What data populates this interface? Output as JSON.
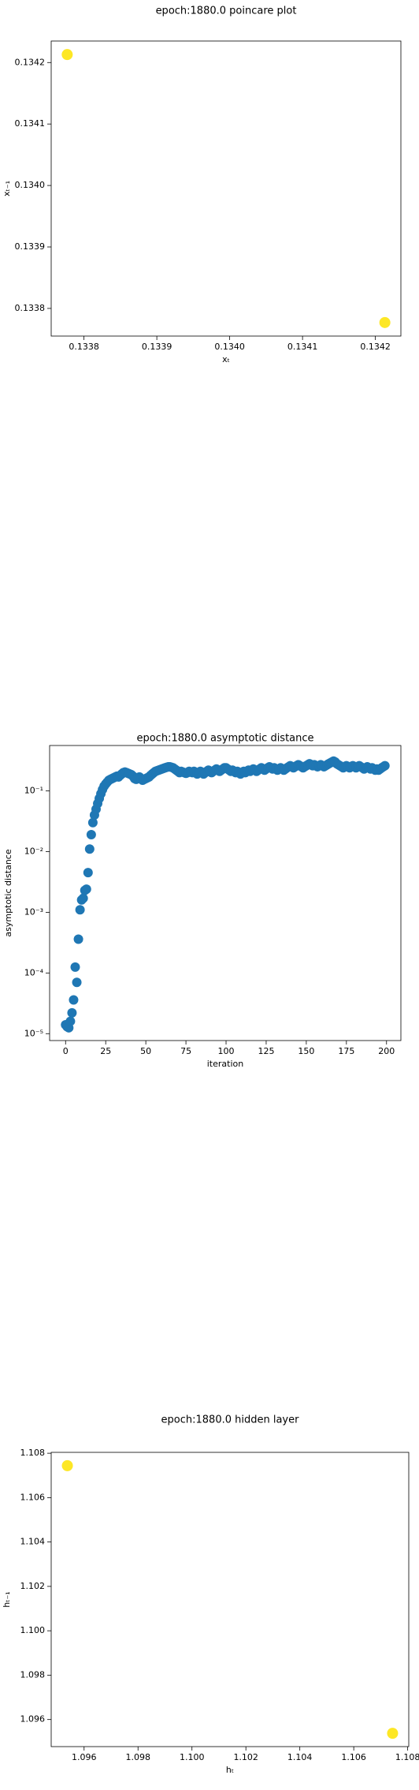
{
  "chart_data": [
    {
      "type": "scatter",
      "title": "epoch:1880.0 poincare plot",
      "x_label": "xₜ",
      "y_label": "xₜ₋₁",
      "x": [
        0.133777,
        0.134213
      ],
      "values": [
        0.134213,
        0.133777
      ],
      "color": "#fde725",
      "xlim": [
        0.133755,
        0.134235
      ],
      "ylim": [
        0.133755,
        0.134235
      ],
      "xticks": [
        0.1338,
        0.1339,
        {
          "value": 0.134,
          "label": "0.1340"
        },
        0.1341,
        0.1342
      ],
      "yticks": [
        0.1338,
        0.1339,
        {
          "value": 0.134,
          "label": "0.1340"
        },
        0.1341,
        0.1342
      ],
      "log_y": false
    },
    {
      "type": "scatter",
      "title": "epoch:1880.0 asymptotic distance",
      "x_label": "iteration",
      "y_label": "asymptotic distance",
      "x": [
        0,
        1,
        2,
        3,
        4,
        5,
        6,
        7,
        8,
        9,
        10,
        11,
        12,
        13,
        14,
        15,
        16,
        17,
        18,
        19,
        20,
        21,
        22,
        23,
        24,
        25,
        26,
        27,
        28,
        29,
        30,
        31,
        32,
        33,
        34,
        35,
        36,
        37,
        38,
        39,
        40,
        41,
        42,
        43,
        44,
        45,
        46,
        47,
        48,
        49,
        50,
        51,
        52,
        53,
        54,
        55,
        56,
        57,
        58,
        59,
        60,
        61,
        62,
        63,
        64,
        65,
        66,
        67,
        68,
        69,
        70,
        71,
        72,
        73,
        74,
        75,
        76,
        77,
        78,
        79,
        80,
        81,
        82,
        83,
        84,
        85,
        86,
        87,
        88,
        89,
        90,
        91,
        92,
        93,
        94,
        95,
        96,
        97,
        98,
        99,
        100,
        101,
        102,
        103,
        104,
        105,
        106,
        107,
        108,
        109,
        110,
        111,
        112,
        113,
        114,
        115,
        116,
        117,
        118,
        119,
        120,
        121,
        122,
        123,
        124,
        125,
        126,
        127,
        128,
        129,
        130,
        131,
        132,
        133,
        134,
        135,
        136,
        137,
        138,
        139,
        140,
        141,
        142,
        143,
        144,
        145,
        146,
        147,
        148,
        149,
        150,
        151,
        152,
        153,
        154,
        155,
        156,
        157,
        158,
        159,
        160,
        161,
        162,
        163,
        164,
        165,
        166,
        167,
        168,
        169,
        170,
        171,
        172,
        173,
        174,
        175,
        176,
        177,
        178,
        179,
        180,
        181,
        182,
        183,
        184,
        185,
        186,
        187,
        188,
        189,
        190,
        191,
        192,
        193,
        194,
        195,
        196,
        197,
        198,
        199
      ],
      "values": [
        1.4e-05,
        1.3e-05,
        1.25e-05,
        1.6e-05,
        2.2e-05,
        3.6e-05,
        0.000125,
        7e-05,
        0.00036,
        0.0011,
        0.0016,
        0.0017,
        0.0023,
        0.0024,
        0.0045,
        0.011,
        0.019,
        0.03,
        0.04,
        0.05,
        0.062,
        0.075,
        0.09,
        0.105,
        0.12,
        0.13,
        0.14,
        0.15,
        0.155,
        0.16,
        0.165,
        0.17,
        0.175,
        0.17,
        0.18,
        0.19,
        0.2,
        0.205,
        0.2,
        0.195,
        0.19,
        0.185,
        0.175,
        0.16,
        0.155,
        0.165,
        0.17,
        0.16,
        0.15,
        0.155,
        0.16,
        0.165,
        0.17,
        0.18,
        0.19,
        0.2,
        0.21,
        0.215,
        0.22,
        0.225,
        0.23,
        0.235,
        0.24,
        0.245,
        0.25,
        0.25,
        0.245,
        0.24,
        0.23,
        0.22,
        0.21,
        0.2,
        0.21,
        0.205,
        0.2,
        0.195,
        0.2,
        0.21,
        0.205,
        0.2,
        0.21,
        0.2,
        0.19,
        0.2,
        0.21,
        0.2,
        0.19,
        0.2,
        0.21,
        0.22,
        0.21,
        0.2,
        0.21,
        0.22,
        0.23,
        0.22,
        0.21,
        0.22,
        0.23,
        0.24,
        0.24,
        0.23,
        0.22,
        0.21,
        0.22,
        0.21,
        0.2,
        0.21,
        0.2,
        0.19,
        0.2,
        0.21,
        0.2,
        0.21,
        0.22,
        0.21,
        0.22,
        0.23,
        0.22,
        0.21,
        0.22,
        0.23,
        0.24,
        0.23,
        0.22,
        0.23,
        0.24,
        0.25,
        0.24,
        0.23,
        0.24,
        0.23,
        0.22,
        0.23,
        0.24,
        0.23,
        0.22,
        0.23,
        0.24,
        0.25,
        0.26,
        0.25,
        0.24,
        0.25,
        0.26,
        0.27,
        0.26,
        0.25,
        0.24,
        0.25,
        0.26,
        0.27,
        0.28,
        0.27,
        0.26,
        0.27,
        0.26,
        0.25,
        0.26,
        0.27,
        0.26,
        0.25,
        0.26,
        0.27,
        0.28,
        0.29,
        0.3,
        0.31,
        0.3,
        0.28,
        0.27,
        0.26,
        0.25,
        0.24,
        0.25,
        0.26,
        0.25,
        0.24,
        0.25,
        0.26,
        0.25,
        0.24,
        0.25,
        0.26,
        0.25,
        0.24,
        0.23,
        0.24,
        0.25,
        0.24,
        0.23,
        0.24,
        0.23,
        0.22,
        0.23,
        0.22,
        0.23,
        0.24,
        0.25,
        0.26
      ],
      "color": "#1f77b4",
      "xlim": [
        -9.95,
        208.95
      ],
      "ylim": [
        7.7e-06,
        0.56
      ],
      "xticks": [
        0,
        25,
        50,
        75,
        100,
        125,
        150,
        175,
        200
      ],
      "yticks": [
        {
          "value": 1e-05,
          "label": "10⁻⁵"
        },
        {
          "value": 0.0001,
          "label": "10⁻⁴"
        },
        {
          "value": 0.001,
          "label": "10⁻³"
        },
        {
          "value": 0.01,
          "label": "10⁻²"
        },
        {
          "value": 0.1,
          "label": "10⁻¹"
        }
      ],
      "log_y": true
    },
    {
      "type": "scatter",
      "title": "epoch:1880.0 hidden layer",
      "x_label": "hₜ",
      "y_label": "hₜ₋₁",
      "x": [
        1.09538,
        1.10744
      ],
      "values": [
        1.10744,
        1.09538
      ],
      "color": "#fde725",
      "xlim": [
        1.09478,
        1.10804
      ],
      "ylim": [
        1.09478,
        1.10804
      ],
      "xticks": [
        1.096,
        1.098,
        {
          "value": 1.1,
          "label": "1.100"
        },
        1.102,
        1.104,
        1.106,
        1.108
      ],
      "yticks": [
        1.096,
        1.098,
        {
          "value": 1.1,
          "label": "1.100"
        },
        1.102,
        1.104,
        1.106,
        1.108
      ],
      "log_y": false
    }
  ]
}
